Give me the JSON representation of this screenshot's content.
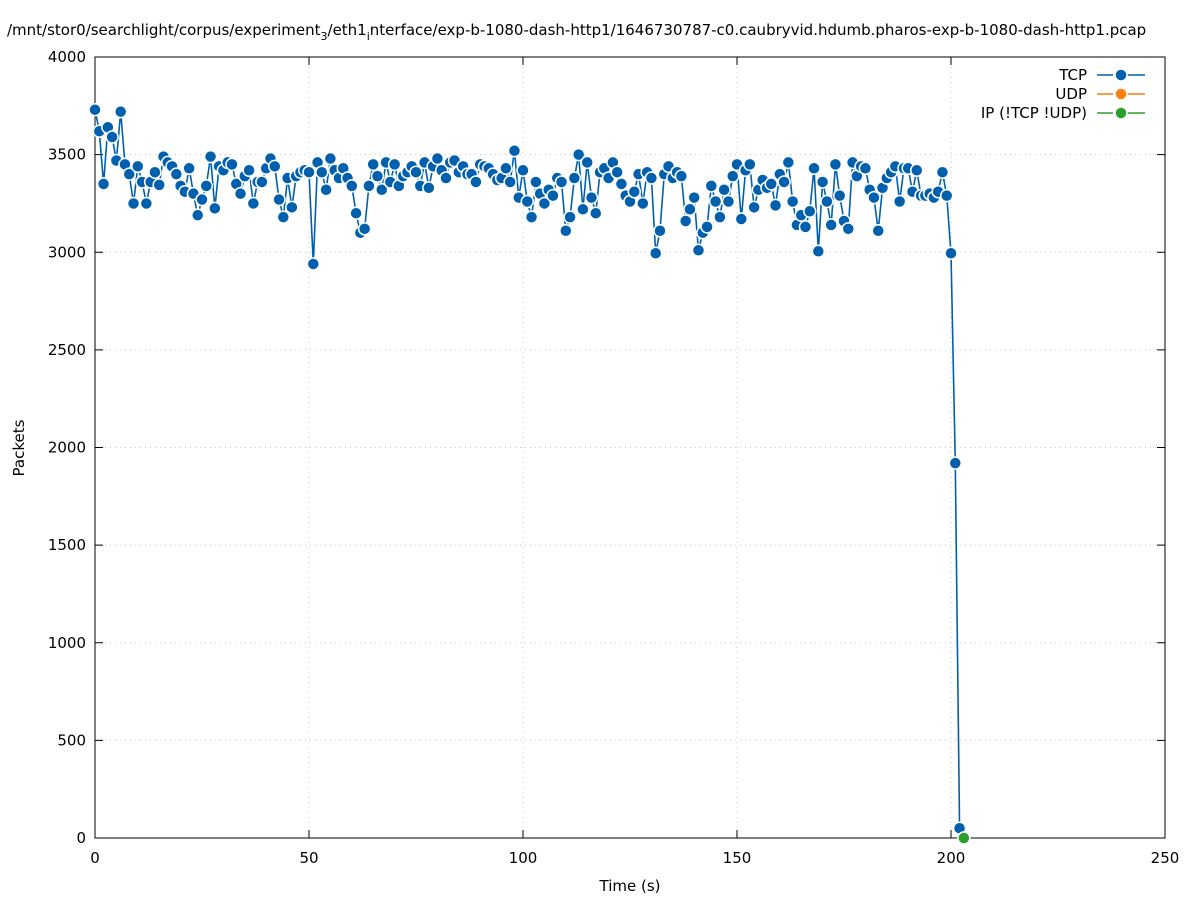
{
  "chart_data": {
    "type": "line",
    "title": [
      "/mnt/stor0/searchlight/corpus/experiment",
      "3",
      "/eth1",
      "i",
      "nterface/exp-b-1080-dash-http1/1646730787-c0.caubryvid.hdumb.pharos-exp-b-1080-dash-http1.pcap"
    ],
    "x_label": "Time (s)",
    "y_label": "Packets",
    "xlim": [
      0,
      250
    ],
    "xticks": [
      0,
      50,
      100,
      150,
      200,
      250
    ],
    "ylim": [
      0,
      4000
    ],
    "yticks": [
      0,
      500,
      1000,
      1500,
      2000,
      2500,
      3000,
      3500,
      4000
    ],
    "grid": true,
    "legend": "top-right",
    "series": [
      {
        "name": "TCP",
        "color": "#0060ad",
        "x": [
          0,
          1,
          2,
          3,
          4,
          5,
          6,
          7,
          8,
          9,
          10,
          11,
          12,
          13,
          14,
          15,
          16,
          17,
          18,
          19,
          20,
          21,
          22,
          23,
          24,
          25,
          26,
          27,
          28,
          29,
          30,
          31,
          32,
          33,
          34,
          35,
          36,
          37,
          38,
          39,
          40,
          41,
          42,
          43,
          44,
          45,
          46,
          47,
          48,
          49,
          50,
          51,
          52,
          53,
          54,
          55,
          56,
          57,
          58,
          59,
          60,
          61,
          62,
          63,
          64,
          65,
          66,
          67,
          68,
          69,
          70,
          71,
          72,
          73,
          74,
          75,
          76,
          77,
          78,
          79,
          80,
          81,
          82,
          83,
          84,
          85,
          86,
          87,
          88,
          89,
          90,
          91,
          92,
          93,
          94,
          95,
          96,
          97,
          98,
          99,
          100,
          101,
          102,
          103,
          104,
          105,
          106,
          107,
          108,
          109,
          110,
          111,
          112,
          113,
          114,
          115,
          116,
          117,
          118,
          119,
          120,
          121,
          122,
          123,
          124,
          125,
          126,
          127,
          128,
          129,
          130,
          131,
          132,
          133,
          134,
          135,
          136,
          137,
          138,
          139,
          140,
          141,
          142,
          143,
          144,
          145,
          146,
          147,
          148,
          149,
          150,
          151,
          152,
          153,
          154,
          155,
          156,
          157,
          158,
          159,
          160,
          161,
          162,
          163,
          164,
          165,
          166,
          167,
          168,
          169,
          170,
          171,
          172,
          173,
          174,
          175,
          176,
          177,
          178,
          179,
          180,
          181,
          182,
          183,
          184,
          185,
          186,
          187,
          188,
          189,
          190,
          191,
          192,
          193,
          194,
          195,
          196,
          197,
          198,
          199,
          200,
          201,
          202
        ],
        "values": [
          3730,
          3620,
          3350,
          3640,
          3590,
          3470,
          3720,
          3450,
          3400,
          3250,
          3440,
          3360,
          3250,
          3360,
          3410,
          3345,
          3490,
          3460,
          3440,
          3400,
          3340,
          3310,
          3430,
          3300,
          3190,
          3270,
          3340,
          3490,
          3225,
          3440,
          3420,
          3460,
          3450,
          3350,
          3300,
          3390,
          3420,
          3250,
          3360,
          3360,
          3430,
          3480,
          3440,
          3270,
          3180,
          3380,
          3230,
          3390,
          3410,
          3420,
          3410,
          2940,
          3460,
          3410,
          3320,
          3480,
          3420,
          3380,
          3430,
          3380,
          3340,
          3200,
          3100,
          3120,
          3340,
          3450,
          3390,
          3320,
          3460,
          3360,
          3450,
          3340,
          3390,
          3410,
          3440,
          3410,
          3340,
          3460,
          3330,
          3440,
          3480,
          3420,
          3380,
          3460,
          3470,
          3410,
          3440,
          3400,
          3400,
          3360,
          3450,
          3440,
          3430,
          3400,
          3370,
          3380,
          3430,
          3360,
          3520,
          3280,
          3420,
          3260,
          3180,
          3360,
          3300,
          3250,
          3320,
          3290,
          3380,
          3360,
          3110,
          3180,
          3380,
          3500,
          3220,
          3460,
          3280,
          3200,
          3410,
          3430,
          3380,
          3460,
          3410,
          3350,
          3290,
          3260,
          3310,
          3400,
          3250,
          3410,
          3380,
          2995,
          3110,
          3400,
          3440,
          3380,
          3410,
          3390,
          3160,
          3220,
          3280,
          3010,
          3100,
          3130,
          3340,
          3260,
          3180,
          3320,
          3260,
          3390,
          3450,
          3170,
          3420,
          3450,
          3230,
          3320,
          3370,
          3330,
          3350,
          3240,
          3400,
          3360,
          3460,
          3260,
          3140,
          3190,
          3130,
          3210,
          3430,
          3005,
          3360,
          3260,
          3140,
          3450,
          3290,
          3160,
          3120,
          3460,
          3390,
          3440,
          3430,
          3320,
          3280,
          3110,
          3330,
          3380,
          3410,
          3440,
          3260,
          3430,
          3430,
          3310,
          3420,
          3290,
          3290,
          3300,
          3280,
          3310,
          3410,
          3290,
          2995,
          1920,
          50
        ]
      },
      {
        "name": "UDP",
        "color": "#ff7f0e",
        "x": [
          203
        ],
        "values": [
          0
        ]
      },
      {
        "name": "IP (!TCP  !UDP)",
        "color": "#2ca02c",
        "x": [
          203
        ],
        "values": [
          0
        ]
      }
    ]
  }
}
